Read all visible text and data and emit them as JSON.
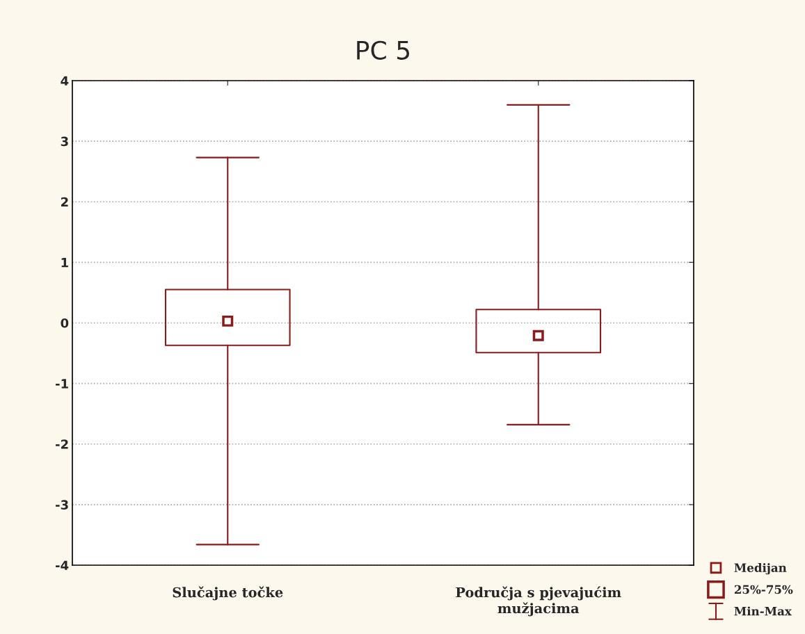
{
  "chart_data": {
    "type": "box",
    "title": "PC 5",
    "categories": [
      "Slučajne točke",
      "Područja s pjevajućim\nmužjacima"
    ],
    "series": [
      {
        "color": "#8b1a1a",
        "boxes": [
          {
            "low": -3.66,
            "q1": -0.37,
            "median": 0.03,
            "q3": 0.55,
            "high": 2.73
          },
          {
            "low": -1.68,
            "q1": -0.49,
            "median": -0.21,
            "q3": 0.22,
            "high": 3.6
          }
        ]
      }
    ],
    "ylim": [
      -4,
      4
    ],
    "yticks": [
      -4,
      -3,
      -2,
      -1,
      0,
      1,
      2,
      3,
      4
    ],
    "grid": "y",
    "annotations": [
      "Medijan",
      "25%-75%",
      "Min-Max"
    ]
  }
}
